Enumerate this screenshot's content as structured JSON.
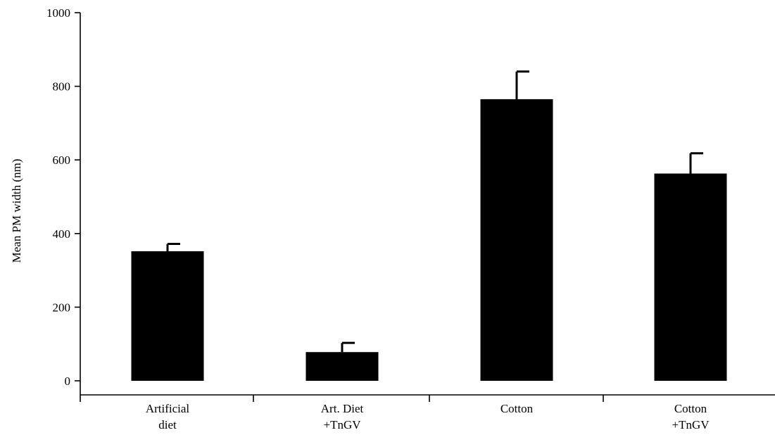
{
  "chart_data": {
    "type": "bar",
    "categories": [
      [
        "Artificial",
        "diet"
      ],
      [
        "Art. Diet",
        "+TnGV"
      ],
      [
        "Cotton"
      ],
      [
        "Cotton",
        "+TnGV"
      ]
    ],
    "values": [
      352,
      78,
      765,
      563
    ],
    "error": [
      20,
      25,
      75,
      55
    ],
    "title": "",
    "xlabel": "",
    "ylabel": "Mean PM width (nm)",
    "ylim": [
      0,
      1000
    ],
    "yticks": [
      0,
      200,
      400,
      600,
      800,
      1000
    ],
    "grid": false,
    "bar_color": "#000000"
  }
}
